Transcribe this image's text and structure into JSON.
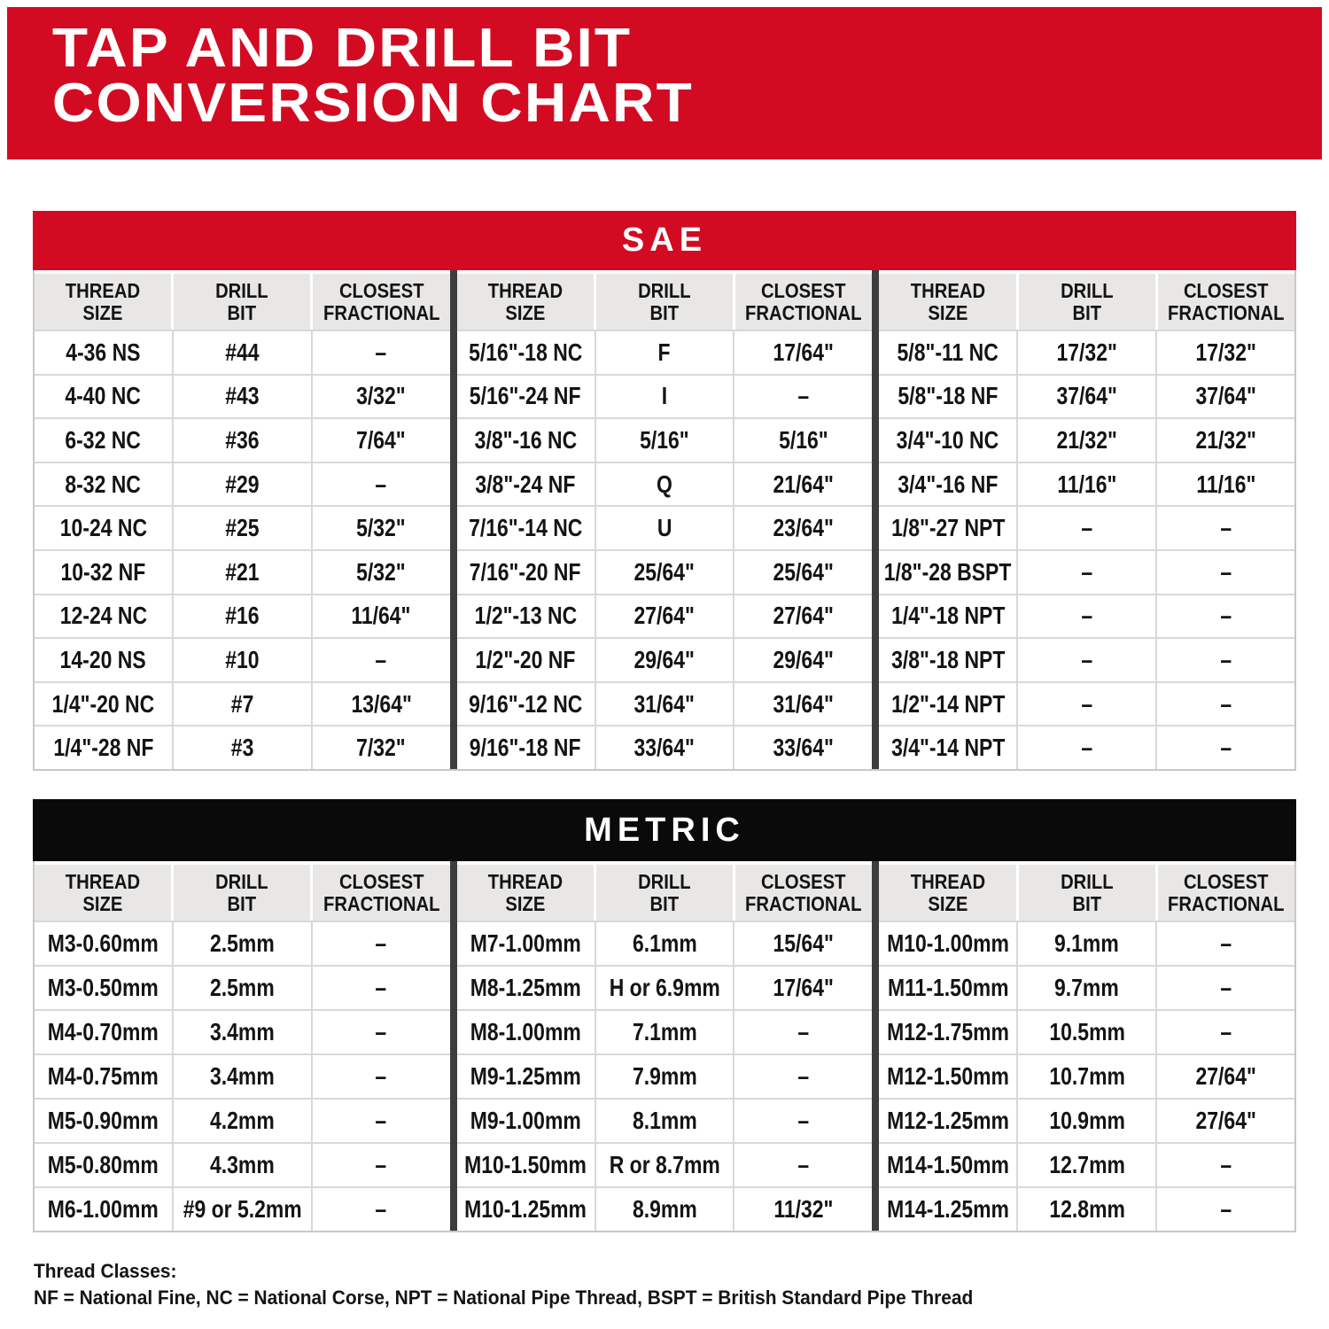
{
  "title": {
    "line1": "TAP AND DRILL BIT",
    "line2": "CONVERSION CHART"
  },
  "colors": {
    "red": "#D30B22",
    "black": "#0A0A0A",
    "header_gray": "#E8E7E6",
    "divider_dark": "#3D3D3D",
    "grid_line": "#D8D8D8"
  },
  "column_headers": [
    {
      "line1": "THREAD",
      "line2": "SIZE"
    },
    {
      "line1": "DRILL",
      "line2": "BIT"
    },
    {
      "line1": "CLOSEST",
      "line2": "FRACTIONAL"
    }
  ],
  "sae": {
    "label": "SAE",
    "groups": [
      {
        "rows": [
          [
            "4-36 NS",
            "#44",
            "–"
          ],
          [
            "4-40 NC",
            "#43",
            "3/32\""
          ],
          [
            "6-32 NC",
            "#36",
            "7/64\""
          ],
          [
            "8-32 NC",
            "#29",
            "–"
          ],
          [
            "10-24 NC",
            "#25",
            "5/32\""
          ],
          [
            "10-32 NF",
            "#21",
            "5/32\""
          ],
          [
            "12-24 NC",
            "#16",
            "11/64\""
          ],
          [
            "14-20 NS",
            "#10",
            "–"
          ],
          [
            "1/4\"-20 NC",
            "#7",
            "13/64\""
          ],
          [
            "1/4\"-28 NF",
            "#3",
            "7/32\""
          ]
        ]
      },
      {
        "rows": [
          [
            "5/16\"-18 NC",
            "F",
            "17/64\""
          ],
          [
            "5/16\"-24 NF",
            "I",
            "–"
          ],
          [
            "3/8\"-16 NC",
            "5/16\"",
            "5/16\""
          ],
          [
            "3/8\"-24 NF",
            "Q",
            "21/64\""
          ],
          [
            "7/16\"-14 NC",
            "U",
            "23/64\""
          ],
          [
            "7/16\"-20 NF",
            "25/64\"",
            "25/64\""
          ],
          [
            "1/2\"-13 NC",
            "27/64\"",
            "27/64\""
          ],
          [
            "1/2\"-20 NF",
            "29/64\"",
            "29/64\""
          ],
          [
            "9/16\"-12 NC",
            "31/64\"",
            "31/64\""
          ],
          [
            "9/16\"-18 NF",
            "33/64\"",
            "33/64\""
          ]
        ]
      },
      {
        "rows": [
          [
            "5/8\"-11 NC",
            "17/32\"",
            "17/32\""
          ],
          [
            "5/8\"-18 NF",
            "37/64\"",
            "37/64\""
          ],
          [
            "3/4\"-10 NC",
            "21/32\"",
            "21/32\""
          ],
          [
            "3/4\"-16 NF",
            "11/16\"",
            "11/16\""
          ],
          [
            "1/8\"-27 NPT",
            "–",
            "–"
          ],
          [
            "1/8\"-28 BSPT",
            "–",
            "–"
          ],
          [
            "1/4\"-18 NPT",
            "–",
            "–"
          ],
          [
            "3/8\"-18 NPT",
            "–",
            "–"
          ],
          [
            "1/2\"-14 NPT",
            "–",
            "–"
          ],
          [
            "3/4\"-14 NPT",
            "–",
            "–"
          ]
        ]
      }
    ]
  },
  "metric": {
    "label": "METRIC",
    "groups": [
      {
        "rows": [
          [
            "M3-0.60mm",
            "2.5mm",
            "–"
          ],
          [
            "M3-0.50mm",
            "2.5mm",
            "–"
          ],
          [
            "M4-0.70mm",
            "3.4mm",
            "–"
          ],
          [
            "M4-0.75mm",
            "3.4mm",
            "–"
          ],
          [
            "M5-0.90mm",
            "4.2mm",
            "–"
          ],
          [
            "M5-0.80mm",
            "4.3mm",
            "–"
          ],
          [
            "M6-1.00mm",
            "#9 or 5.2mm",
            "–"
          ]
        ]
      },
      {
        "rows": [
          [
            "M7-1.00mm",
            "6.1mm",
            "15/64\""
          ],
          [
            "M8-1.25mm",
            "H or 6.9mm",
            "17/64\""
          ],
          [
            "M8-1.00mm",
            "7.1mm",
            "–"
          ],
          [
            "M9-1.25mm",
            "7.9mm",
            "–"
          ],
          [
            "M9-1.00mm",
            "8.1mm",
            "–"
          ],
          [
            "M10-1.50mm",
            "R or 8.7mm",
            "–"
          ],
          [
            "M10-1.25mm",
            "8.9mm",
            "11/32\""
          ]
        ]
      },
      {
        "rows": [
          [
            "M10-1.00mm",
            "9.1mm",
            "–"
          ],
          [
            "M11-1.50mm",
            "9.7mm",
            "–"
          ],
          [
            "M12-1.75mm",
            "10.5mm",
            "–"
          ],
          [
            "M12-1.50mm",
            "10.7mm",
            "27/64\""
          ],
          [
            "M12-1.25mm",
            "10.9mm",
            "27/64\""
          ],
          [
            "M14-1.50mm",
            "12.7mm",
            "–"
          ],
          [
            "M14-1.25mm",
            "12.8mm",
            "–"
          ]
        ]
      }
    ]
  },
  "footer": {
    "line1": "Thread Classes:",
    "line2": "NF = National Fine, NC = National Corse, NPT = National Pipe Thread, BSPT = British Standard Pipe Thread"
  }
}
